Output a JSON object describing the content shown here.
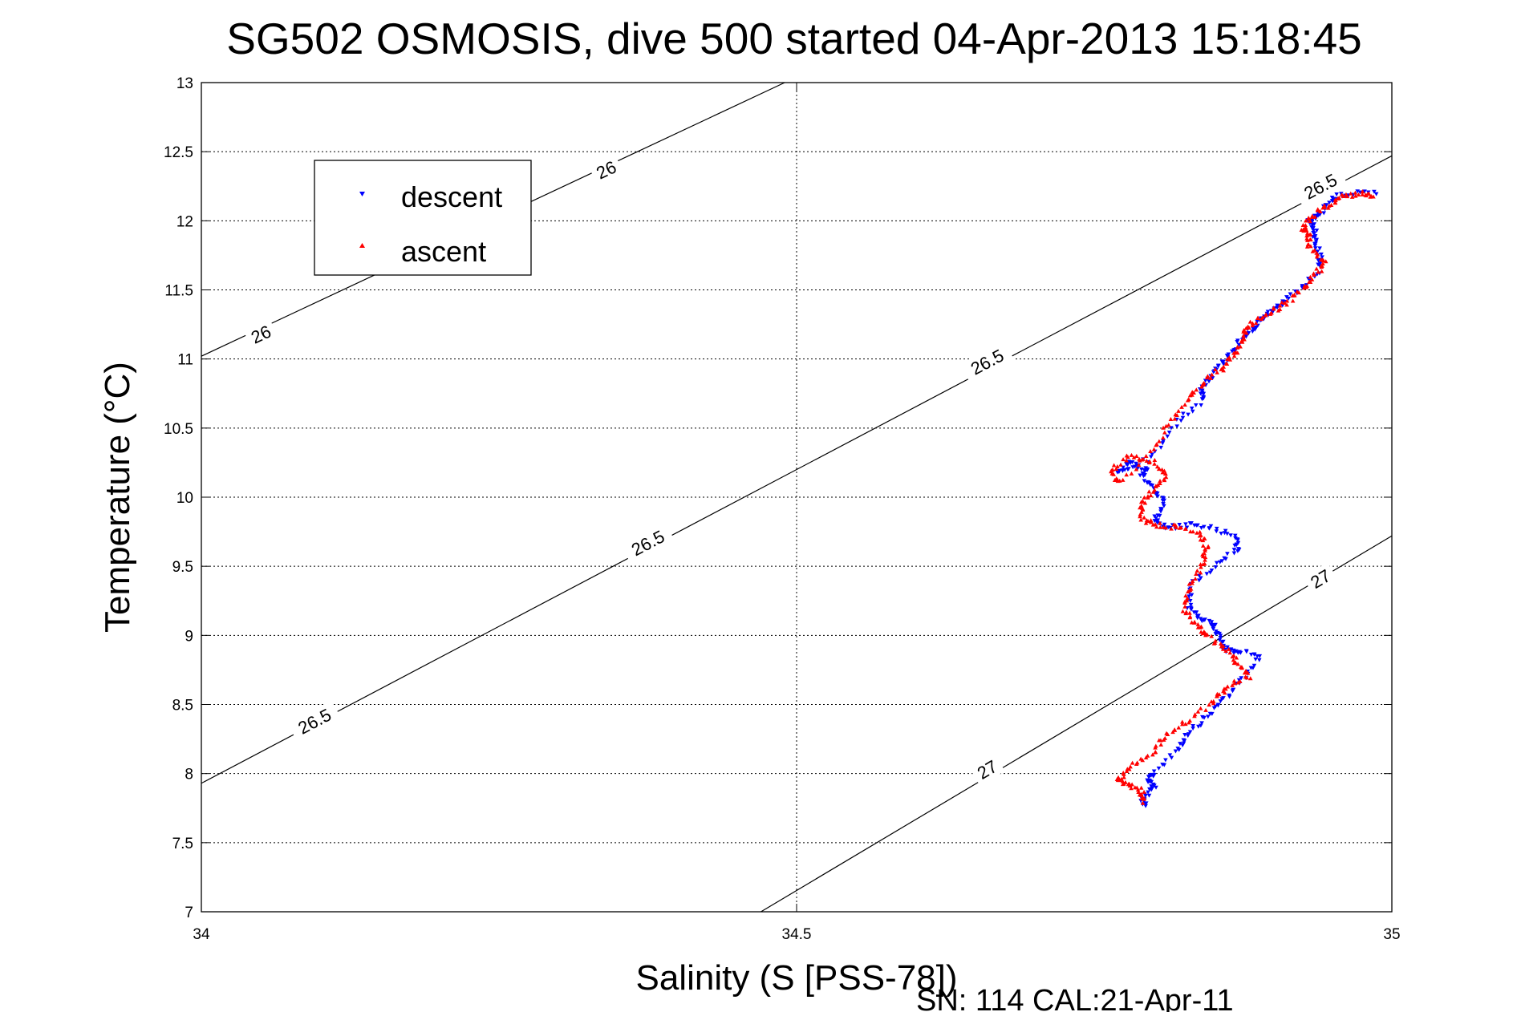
{
  "chart_data": {
    "type": "scatter",
    "title": "SG502 OSMOSIS, dive 500 started 04-Apr-2013 15:18:45",
    "xlabel": "Salinity (S [PSS-78])",
    "ylabel": "Temperature (°C)",
    "xlim": [
      34,
      35
    ],
    "ylim": [
      7,
      13
    ],
    "xticks": [
      34,
      34.5,
      35
    ],
    "xtick_labels": [
      "34",
      "34.5",
      "35"
    ],
    "yticks": [
      7,
      7.5,
      8,
      8.5,
      9,
      9.5,
      10,
      10.5,
      11,
      11.5,
      12,
      12.5,
      13
    ],
    "ytick_labels": [
      "7",
      "7.5",
      "8",
      "8.5",
      "9",
      "9.5",
      "10",
      "10.5",
      "11",
      "11.5",
      "12",
      "12.5",
      "13"
    ],
    "grid": true,
    "legend_position": "top-left",
    "footer": "SN: 114  CAL:21-Apr-11",
    "colors": {
      "descent": "#0000ff",
      "ascent": "#ff0000",
      "contour": "#000000"
    },
    "density_contours": [
      {
        "level": 26,
        "x": [
          34.0,
          34.49
        ],
        "y": [
          11.02,
          13.0
        ],
        "labels": [
          {
            "text": "26",
            "x": 34.05,
            "y": 11.18
          },
          {
            "text": "26",
            "x": 34.34,
            "y": 12.37
          }
        ]
      },
      {
        "level": 26.5,
        "x": [
          34.0,
          35.0
        ],
        "y": [
          7.93,
          12.47
        ],
        "labels": [
          {
            "text": "26.5",
            "x": 34.095,
            "y": 8.38
          },
          {
            "text": "26.5",
            "x": 34.375,
            "y": 9.67
          },
          {
            "text": "26.5",
            "x": 34.66,
            "y": 10.98
          },
          {
            "text": "26.5",
            "x": 34.94,
            "y": 12.25
          }
        ]
      },
      {
        "level": 27,
        "x": [
          34.47,
          35.0
        ],
        "y": [
          7.0,
          9.72
        ],
        "labels": [
          {
            "text": "27",
            "x": 34.66,
            "y": 8.03
          },
          {
            "text": "27",
            "x": 34.94,
            "y": 9.41
          }
        ]
      }
    ],
    "series": [
      {
        "name": "descent",
        "marker": "triangle-down",
        "path": [
          [
            34.793,
            7.78
          ],
          [
            34.79,
            7.82
          ],
          [
            34.8,
            7.9
          ],
          [
            34.795,
            7.95
          ],
          [
            34.8,
            8.0
          ],
          [
            34.82,
            8.18
          ],
          [
            34.83,
            8.3
          ],
          [
            34.845,
            8.42
          ],
          [
            34.86,
            8.55
          ],
          [
            34.875,
            8.68
          ],
          [
            34.89,
            8.86
          ],
          [
            34.87,
            8.88
          ],
          [
            34.86,
            8.9
          ],
          [
            34.855,
            9.0
          ],
          [
            34.85,
            9.08
          ],
          [
            34.84,
            9.12
          ],
          [
            34.83,
            9.2
          ],
          [
            34.83,
            9.35
          ],
          [
            34.85,
            9.5
          ],
          [
            34.87,
            9.62
          ],
          [
            34.87,
            9.7
          ],
          [
            34.85,
            9.78
          ],
          [
            34.83,
            9.8
          ],
          [
            34.81,
            9.78
          ],
          [
            34.8,
            9.85
          ],
          [
            34.81,
            9.95
          ],
          [
            34.8,
            10.05
          ],
          [
            34.79,
            10.15
          ],
          [
            34.795,
            10.2
          ],
          [
            34.78,
            10.25
          ],
          [
            34.77,
            10.18
          ],
          [
            34.8,
            10.3
          ],
          [
            34.82,
            10.55
          ],
          [
            34.84,
            10.7
          ],
          [
            34.84,
            10.8
          ],
          [
            34.85,
            10.9
          ],
          [
            34.86,
            11.0
          ],
          [
            34.87,
            11.1
          ],
          [
            34.88,
            11.2
          ],
          [
            34.89,
            11.28
          ],
          [
            34.9,
            11.35
          ],
          [
            34.91,
            11.42
          ],
          [
            34.925,
            11.52
          ],
          [
            34.94,
            11.65
          ],
          [
            34.94,
            11.75
          ],
          [
            34.935,
            11.85
          ],
          [
            34.935,
            11.95
          ],
          [
            34.93,
            12.0
          ],
          [
            34.94,
            12.05
          ],
          [
            34.95,
            12.15
          ],
          [
            34.96,
            12.2
          ],
          [
            34.99,
            12.2
          ]
        ]
      },
      {
        "name": "ascent",
        "marker": "triangle-up",
        "path": [
          [
            34.79,
            7.8
          ],
          [
            34.79,
            7.87
          ],
          [
            34.78,
            7.92
          ],
          [
            34.77,
            7.95
          ],
          [
            34.78,
            8.05
          ],
          [
            34.8,
            8.15
          ],
          [
            34.81,
            8.28
          ],
          [
            34.83,
            8.38
          ],
          [
            34.85,
            8.52
          ],
          [
            34.86,
            8.62
          ],
          [
            34.88,
            8.7
          ],
          [
            34.87,
            8.8
          ],
          [
            34.86,
            8.9
          ],
          [
            34.845,
            9.0
          ],
          [
            34.835,
            9.08
          ],
          [
            34.825,
            9.2
          ],
          [
            34.83,
            9.35
          ],
          [
            34.84,
            9.5
          ],
          [
            34.845,
            9.62
          ],
          [
            34.84,
            9.73
          ],
          [
            34.82,
            9.78
          ],
          [
            34.8,
            9.8
          ],
          [
            34.79,
            9.85
          ],
          [
            34.79,
            9.95
          ],
          [
            34.8,
            10.05
          ],
          [
            34.81,
            10.15
          ],
          [
            34.8,
            10.25
          ],
          [
            34.78,
            10.3
          ],
          [
            34.765,
            10.2
          ],
          [
            34.77,
            10.1
          ],
          [
            34.8,
            10.35
          ],
          [
            34.815,
            10.55
          ],
          [
            34.83,
            10.72
          ],
          [
            34.845,
            10.85
          ],
          [
            34.86,
            10.95
          ],
          [
            34.87,
            11.05
          ],
          [
            34.875,
            11.15
          ],
          [
            34.88,
            11.25
          ],
          [
            34.895,
            11.32
          ],
          [
            34.91,
            11.4
          ],
          [
            34.925,
            11.5
          ],
          [
            34.935,
            11.6
          ],
          [
            34.945,
            11.7
          ],
          [
            34.93,
            11.8
          ],
          [
            34.93,
            11.9
          ],
          [
            34.925,
            11.95
          ],
          [
            34.935,
            12.05
          ],
          [
            34.95,
            12.12
          ],
          [
            34.96,
            12.18
          ],
          [
            34.975,
            12.2
          ],
          [
            34.985,
            12.18
          ]
        ]
      }
    ]
  }
}
